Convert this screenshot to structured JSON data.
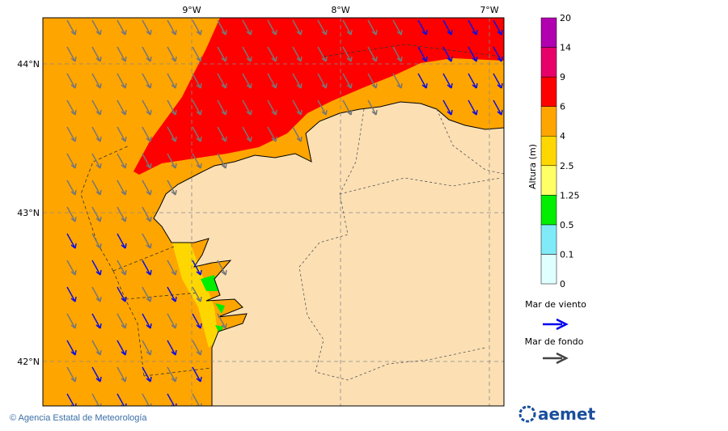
{
  "map": {
    "lon_labels": [
      "9°W",
      "8°W",
      "7°W"
    ],
    "lat_labels": [
      "44°N",
      "43°N",
      "42°N"
    ]
  },
  "legend": {
    "title": "Altura (m)",
    "levels": [
      0,
      0.1,
      0.5,
      1.25,
      2.5,
      4,
      6,
      9,
      14,
      20
    ],
    "colors": [
      "#e0ffff",
      "#80eaf8",
      "#00ee00",
      "#ffff66",
      "#ffd700",
      "#ffa500",
      "#ff0000",
      "#e8006a",
      "#b000b0"
    ],
    "wind_sea": "Mar de viento",
    "swell": "Mar de fondo"
  },
  "footer": {
    "credit": "© Agencia Estatal de Meteorología",
    "logo": "aemet"
  }
}
